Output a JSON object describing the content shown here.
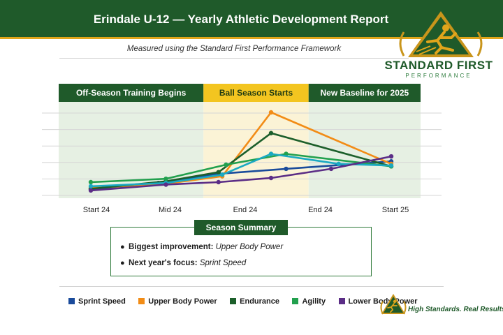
{
  "header": {
    "title": "Erindale U-12 — Yearly Athletic Development Report",
    "subtitle": "Measured using the Standard First Performance Framework"
  },
  "brand": {
    "name": "STANDARD FIRST",
    "sub": "PERFORMANCE",
    "tagline": "High Standards. Real Results.",
    "green": "#1f5a2a",
    "gold": "#e0a51b"
  },
  "chart_data": {
    "type": "line",
    "title": "",
    "xlabel": "",
    "ylabel": "",
    "categories": [
      "Start 24",
      "Mid 24",
      "End 24",
      "End 24",
      "Start 25"
    ],
    "ylim": [
      0,
      10
    ],
    "grid": true,
    "legend_position": "bottom",
    "phases": [
      {
        "label": "Off-Season Training Begins",
        "from": 0,
        "to": 1.5,
        "color": "#e6f0e3"
      },
      {
        "label": "Ball Season Starts",
        "from": 1.5,
        "to": 2.9,
        "color": "#fbf3d6"
      },
      {
        "label": "New Baseline for 2025",
        "from": 2.9,
        "to": 4,
        "color": "#e6f0e3"
      }
    ],
    "series": [
      {
        "name": "Sprint Speed",
        "color": "#1a4b9b",
        "x": [
          0,
          0.9,
          1.7,
          2.6,
          4
        ],
        "values": [
          0.7,
          1.5,
          2.6,
          3.2,
          4.1
        ]
      },
      {
        "name": "Upper Body Power",
        "color": "#f28c16",
        "x": [
          0,
          1,
          1.75,
          2.4,
          4
        ],
        "values": [
          0.9,
          1.4,
          2.3,
          10,
          3.8
        ]
      },
      {
        "name": "Endurance",
        "color": "#1c5f2b",
        "x": [
          0,
          1,
          1.7,
          2.4,
          4
        ],
        "values": [
          0.8,
          1.7,
          2.8,
          7.5,
          3.5
        ]
      },
      {
        "name": "Agility",
        "color": "#22a04e",
        "x": [
          0,
          1,
          1.8,
          2.6,
          4
        ],
        "values": [
          1.6,
          2.0,
          3.7,
          5.0,
          3.5
        ]
      },
      {
        "name": "Lower Body Power",
        "color": "#1aa9c2",
        "x": [
          0,
          1,
          1.75,
          2.4,
          3.3,
          4
        ],
        "values": [
          1.1,
          1.5,
          2.5,
          5.0,
          3.8,
          3.6
        ]
      },
      {
        "name": "Lower Body Power",
        "color": "#5b2d86",
        "x": [
          0,
          1,
          1.7,
          2.4,
          3.2,
          4
        ],
        "values": [
          0.6,
          1.3,
          1.6,
          2.1,
          3.2,
          4.7
        ]
      }
    ]
  },
  "summary": {
    "title": "Season Summary",
    "items": [
      {
        "label": "Biggest improvement:",
        "value": "Upper Body Power"
      },
      {
        "label": "Next year's focus:",
        "value": "Sprint Speed"
      }
    ]
  },
  "legend": [
    {
      "label": "Sprint Speed",
      "color": "#1a4b9b"
    },
    {
      "label": "Upper Body Power",
      "color": "#f28c16"
    },
    {
      "label": "Endurance",
      "color": "#1c5f2b"
    },
    {
      "label": "Agility",
      "color": "#22a04e"
    },
    {
      "label": "Lower Body Power",
      "color": "#5b2d86"
    }
  ]
}
